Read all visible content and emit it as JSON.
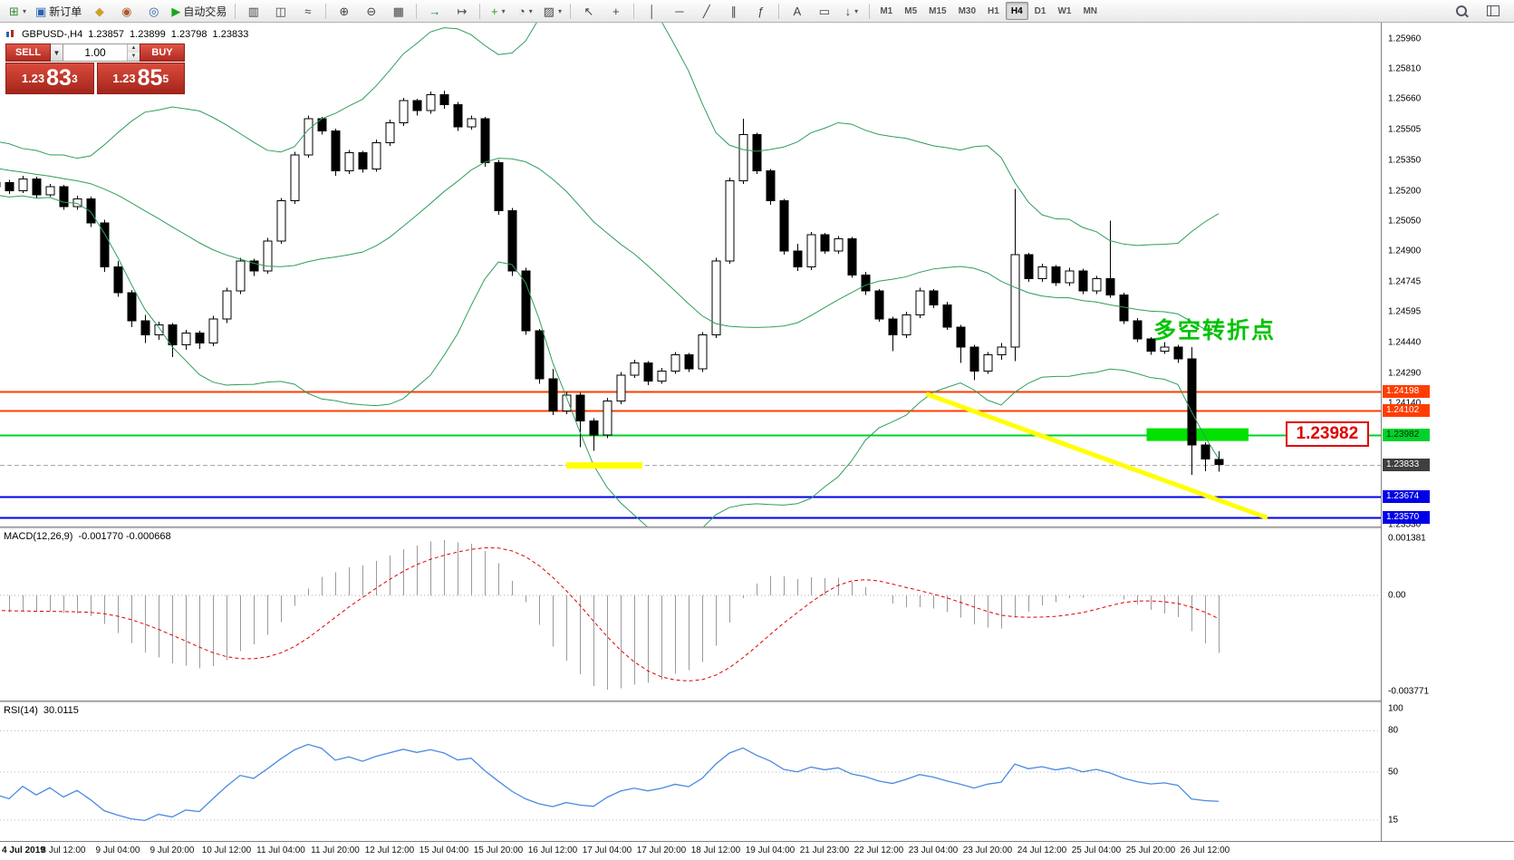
{
  "toolbar": {
    "buttons": [
      {
        "name": "new-chart-button",
        "glyph": "⊞",
        "color": "#3c8c3c",
        "dropdown": true
      },
      {
        "name": "new-order-button",
        "glyph": "▣",
        "color": "#2a62b0",
        "label": "新订单"
      },
      {
        "name": "metaeditor-button",
        "glyph": "◆",
        "color": "#c9a227"
      },
      {
        "name": "market-button",
        "glyph": "◉",
        "color": "#b05a2a"
      },
      {
        "name": "community-button",
        "glyph": "◎",
        "color": "#2a62b0"
      },
      {
        "name": "autotrading-button",
        "glyph": "▶",
        "color": "#18a818",
        "label": "自动交易"
      },
      {
        "sep": true
      },
      {
        "name": "bar-chart-button",
        "glyph": "▥",
        "color": "#444444"
      },
      {
        "name": "candlestick-button",
        "glyph": "◫",
        "color": "#444444"
      },
      {
        "name": "line-chart-button",
        "glyph": "≈",
        "color": "#444444"
      },
      {
        "sep": true
      },
      {
        "name": "zoom-in-button",
        "glyph": "⊕",
        "color": "#444444"
      },
      {
        "name": "zoom-out-button",
        "glyph": "⊖",
        "color": "#444444"
      },
      {
        "name": "tick-chart-button",
        "glyph": "▦",
        "color": "#444444"
      },
      {
        "sep": true
      },
      {
        "name": "autoscroll-button",
        "glyph": "→",
        "color": "#2a7a2a"
      },
      {
        "name": "chart-shift-button",
        "glyph": "↦",
        "color": "#444444"
      },
      {
        "sep": true
      },
      {
        "name": "indicators-button",
        "glyph": "+",
        "color": "#18a818",
        "dropdown": true
      },
      {
        "name": "periods-button",
        "glyph": "◔",
        "color": "#444444",
        "dropdown": true
      },
      {
        "name": "templates-button",
        "glyph": "▨",
        "color": "#444444",
        "dropdown": true
      },
      {
        "sep": true
      },
      {
        "name": "cursor-button",
        "glyph": "↖",
        "color": "#444444"
      },
      {
        "name": "crosshair-button",
        "glyph": "+",
        "color": "#444444"
      },
      {
        "sep": true
      },
      {
        "name": "vertical-line-button",
        "glyph": "│",
        "color": "#444444"
      },
      {
        "name": "horizontal-line-button",
        "glyph": "─",
        "color": "#444444"
      },
      {
        "name": "trendline-button",
        "glyph": "╱",
        "color": "#444444"
      },
      {
        "name": "channel-button",
        "glyph": "∥",
        "color": "#444444"
      },
      {
        "name": "fibonacci-button",
        "glyph": "ƒ",
        "color": "#444444"
      },
      {
        "sep": true
      },
      {
        "name": "text-button",
        "glyph": "A",
        "color": "#444444"
      },
      {
        "name": "label-button",
        "glyph": "▭",
        "color": "#444444"
      },
      {
        "name": "arrows-button",
        "glyph": "↓",
        "color": "#444444",
        "dropdown": true
      },
      {
        "sep": true
      }
    ],
    "timeframes": [
      {
        "label": "M1"
      },
      {
        "label": "M5"
      },
      {
        "label": "M15"
      },
      {
        "label": "M30"
      },
      {
        "label": "H1"
      },
      {
        "label": "H4",
        "active": true
      },
      {
        "label": "D1"
      },
      {
        "label": "W1"
      },
      {
        "label": "MN"
      }
    ],
    "right_buttons": [
      {
        "name": "search-button",
        "icon": "magnifier"
      },
      {
        "name": "panels-button",
        "icon": "panels"
      }
    ]
  },
  "one_click": {
    "sell_label": "SELL",
    "buy_label": "BUY",
    "lot": "1.00",
    "sell": {
      "big": "1.23",
      "pips": "83",
      "pt": "3"
    },
    "buy": {
      "big": "1.23",
      "pips": "85",
      "pt": "5"
    }
  },
  "chart_data": {
    "type": "candlestick",
    "symbol_period": "GBPUSD-,H4",
    "open": "1.23857",
    "high": "1.23899",
    "low": "1.23798",
    "close": "1.23833",
    "ylim": [
      1.23523,
      1.2604
    ],
    "visible_start": 21,
    "candles": [
      [
        1.2548,
        1.25495,
        1.25435,
        1.2545
      ],
      [
        1.2545,
        1.25465,
        1.25405,
        1.2542
      ],
      [
        1.2542,
        1.25455,
        1.25405,
        1.2544
      ],
      [
        1.2544,
        1.2545,
        1.25375,
        1.2539
      ],
      [
        1.2539,
        1.25425,
        1.25375,
        1.2541
      ],
      [
        1.2541,
        1.2542,
        1.25345,
        1.2536
      ],
      [
        1.2536,
        1.25395,
        1.25345,
        1.2538
      ],
      [
        1.2538,
        1.2539,
        1.25315,
        1.2533
      ],
      [
        1.2533,
        1.25365,
        1.25315,
        1.2535
      ],
      [
        1.2535,
        1.2536,
        1.25285,
        1.253
      ],
      [
        1.253,
        1.25335,
        1.25285,
        1.2532
      ],
      [
        1.2532,
        1.2533,
        1.25265,
        1.2528
      ],
      [
        1.2528,
        1.25315,
        1.25265,
        1.253
      ],
      [
        1.253,
        1.2531,
        1.25245,
        1.2526
      ],
      [
        1.2526,
        1.25295,
        1.25245,
        1.2528
      ],
      [
        1.2528,
        1.2529,
        1.25225,
        1.2524
      ],
      [
        1.2524,
        1.25275,
        1.25225,
        1.2526
      ],
      [
        1.2526,
        1.2527,
        1.25215,
        1.2523
      ],
      [
        1.2523,
        1.25265,
        1.25215,
        1.2525
      ],
      [
        1.2525,
        1.2526,
        1.25205,
        1.2522
      ],
      [
        1.2522,
        1.25255,
        1.25205,
        1.2524
      ],
      [
        1.2524,
        1.25255,
        1.25185,
        1.252
      ],
      [
        1.252,
        1.25275,
        1.2519,
        1.2526
      ],
      [
        1.2526,
        1.2527,
        1.25165,
        1.2518
      ],
      [
        1.2518,
        1.25235,
        1.2517,
        1.2522
      ],
      [
        1.2522,
        1.2523,
        1.25105,
        1.2512
      ],
      [
        1.2512,
        1.25175,
        1.25105,
        1.2516
      ],
      [
        1.2516,
        1.2517,
        1.2502,
        1.2504
      ],
      [
        1.2504,
        1.25055,
        1.24795,
        1.2482
      ],
      [
        1.2482,
        1.2485,
        1.2467,
        1.2469
      ],
      [
        1.2469,
        1.24705,
        1.2452,
        1.2455
      ],
      [
        1.2455,
        1.2458,
        1.2444,
        1.2448
      ],
      [
        1.2448,
        1.24545,
        1.24455,
        1.2453
      ],
      [
        1.2453,
        1.2454,
        1.2437,
        1.2443
      ],
      [
        1.2443,
        1.24505,
        1.24405,
        1.2449
      ],
      [
        1.2449,
        1.245,
        1.2441,
        1.2444
      ],
      [
        1.2444,
        1.24575,
        1.24425,
        1.2456
      ],
      [
        1.2456,
        1.24715,
        1.2454,
        1.247
      ],
      [
        1.247,
        1.24865,
        1.24685,
        1.2485
      ],
      [
        1.2485,
        1.2486,
        1.24775,
        1.248
      ],
      [
        1.248,
        1.24965,
        1.24785,
        1.2495
      ],
      [
        1.2495,
        1.25165,
        1.24935,
        1.2515
      ],
      [
        1.2515,
        1.25395,
        1.25135,
        1.2538
      ],
      [
        1.2538,
        1.25575,
        1.25365,
        1.2556
      ],
      [
        1.2556,
        1.2557,
        1.2548,
        1.255
      ],
      [
        1.255,
        1.2551,
        1.25275,
        1.253
      ],
      [
        1.253,
        1.25405,
        1.25285,
        1.2539
      ],
      [
        1.2539,
        1.254,
        1.2529,
        1.2531
      ],
      [
        1.2531,
        1.25455,
        1.25295,
        1.2544
      ],
      [
        1.2544,
        1.25555,
        1.25425,
        1.2554
      ],
      [
        1.2554,
        1.25665,
        1.25525,
        1.2565
      ],
      [
        1.2565,
        1.2566,
        1.25575,
        1.256
      ],
      [
        1.256,
        1.25695,
        1.25585,
        1.2568
      ],
      [
        1.2568,
        1.257,
        1.2561,
        1.2563
      ],
      [
        1.2563,
        1.25645,
        1.255,
        1.2552
      ],
      [
        1.2552,
        1.25575,
        1.25505,
        1.2556
      ],
      [
        1.2556,
        1.2557,
        1.2532,
        1.2534
      ],
      [
        1.2534,
        1.25355,
        1.2508,
        1.251
      ],
      [
        1.251,
        1.25115,
        1.24775,
        1.248
      ],
      [
        1.248,
        1.24815,
        1.2448,
        1.245
      ],
      [
        1.245,
        1.2451,
        1.24235,
        1.2426
      ],
      [
        1.2426,
        1.2431,
        1.2408,
        1.241
      ],
      [
        1.241,
        1.24195,
        1.24085,
        1.2418
      ],
      [
        1.2418,
        1.2419,
        1.2392,
        1.2405
      ],
      [
        1.2405,
        1.24065,
        1.239,
        1.2398
      ],
      [
        1.2398,
        1.24165,
        1.23965,
        1.2415
      ],
      [
        1.2415,
        1.24295,
        1.24135,
        1.2428
      ],
      [
        1.2428,
        1.24355,
        1.24265,
        1.2434
      ],
      [
        1.2434,
        1.2435,
        1.2423,
        1.2425
      ],
      [
        1.2425,
        1.24315,
        1.24235,
        1.243
      ],
      [
        1.243,
        1.24395,
        1.24285,
        1.2438
      ],
      [
        1.2438,
        1.2439,
        1.24295,
        1.2431
      ],
      [
        1.2431,
        1.24495,
        1.24295,
        1.2448
      ],
      [
        1.2448,
        1.24865,
        1.24465,
        1.2485
      ],
      [
        1.2485,
        1.25265,
        1.24835,
        1.2525
      ],
      [
        1.2525,
        1.2556,
        1.25235,
        1.2548
      ],
      [
        1.2548,
        1.2549,
        1.25285,
        1.253
      ],
      [
        1.253,
        1.2531,
        1.2513,
        1.2515
      ],
      [
        1.2515,
        1.2516,
        1.2488,
        1.249
      ],
      [
        1.249,
        1.24935,
        1.248,
        1.2482
      ],
      [
        1.2482,
        1.24995,
        1.24805,
        1.2498
      ],
      [
        1.2498,
        1.2499,
        1.24885,
        1.249
      ],
      [
        1.249,
        1.24975,
        1.24885,
        1.2496
      ],
      [
        1.2496,
        1.2497,
        1.24765,
        1.2478
      ],
      [
        1.2478,
        1.24795,
        1.2468,
        1.247
      ],
      [
        1.247,
        1.2471,
        1.24545,
        1.2456
      ],
      [
        1.2456,
        1.2457,
        1.244,
        1.2448
      ],
      [
        1.2448,
        1.24595,
        1.24465,
        1.2458
      ],
      [
        1.2458,
        1.24715,
        1.24565,
        1.247
      ],
      [
        1.247,
        1.2471,
        1.24615,
        1.2463
      ],
      [
        1.2463,
        1.24645,
        1.24505,
        1.2452
      ],
      [
        1.2452,
        1.2453,
        1.2434,
        1.2442
      ],
      [
        1.2442,
        1.2443,
        1.24255,
        1.243
      ],
      [
        1.243,
        1.24395,
        1.24285,
        1.2438
      ],
      [
        1.2438,
        1.2444,
        1.24355,
        1.2442
      ],
      [
        1.2442,
        1.2521,
        1.2435,
        1.2488
      ],
      [
        1.2488,
        1.2489,
        1.24745,
        1.2476
      ],
      [
        1.2476,
        1.24835,
        1.24745,
        1.2482
      ],
      [
        1.2482,
        1.2483,
        1.24725,
        1.2474
      ],
      [
        1.2474,
        1.24815,
        1.24725,
        1.248
      ],
      [
        1.248,
        1.2481,
        1.24685,
        1.247
      ],
      [
        1.247,
        1.24775,
        1.24685,
        1.2476
      ],
      [
        1.2476,
        1.2505,
        1.24665,
        1.2468
      ],
      [
        1.2468,
        1.2469,
        1.24535,
        1.2455
      ],
      [
        1.2455,
        1.24565,
        1.24445,
        1.2446
      ],
      [
        1.2446,
        1.2447,
        1.2438,
        1.244
      ],
      [
        1.244,
        1.24445,
        1.24385,
        1.2442
      ],
      [
        1.2442,
        1.2443,
        1.2434,
        1.2436
      ],
      [
        1.2436,
        1.2442,
        1.2378,
        1.2393
      ],
      [
        1.2393,
        1.23945,
        1.238,
        1.2386
      ],
      [
        1.23857,
        1.23899,
        1.23798,
        1.23833
      ]
    ],
    "x_labels": [
      "4 Jul 2019",
      "8 Jul 12:00",
      "9 Jul 04:00",
      "9 Jul 20:00",
      "10 Jul 12:00",
      "11 Jul 04:00",
      "11 Jul 20:00",
      "12 Jul 12:00",
      "15 Jul 04:00",
      "15 Jul 20:00",
      "16 Jul 12:00",
      "17 Jul 04:00",
      "17 Jul 20:00",
      "18 Jul 12:00",
      "19 Jul 04:00",
      "21 Jul 23:00",
      "22 Jul 12:00",
      "23 Jul 04:00",
      "23 Jul 20:00",
      "24 Jul 12:00",
      "25 Jul 04:00",
      "25 Jul 20:00",
      "26 Jul 12:00"
    ],
    "price_scale_labels": [
      "1.25960",
      "1.25810",
      "1.25660",
      "1.25505",
      "1.25350",
      "1.25200",
      "1.25050",
      "1.24900",
      "1.24745",
      "1.24595",
      "1.24440",
      "1.24290",
      "1.24140",
      "1.23530"
    ],
    "levels": [
      {
        "price": 1.24198,
        "label": "1.24198",
        "color": "#ff3d00",
        "width": 2
      },
      {
        "price": 1.24102,
        "label": "1.24102",
        "color": "#ff3d00",
        "width": 2
      },
      {
        "price": 1.23982,
        "label": "1.23982",
        "color": "#00d22b",
        "width": 2,
        "text_color": "#002b00"
      },
      {
        "price": 1.23833,
        "label": "1.23833",
        "color": "#3f3f3f",
        "width": 1,
        "style": "dashed",
        "line_color": "#a8a8a8"
      },
      {
        "price": 1.23674,
        "label": "1.23674",
        "color": "#0000e6",
        "width": 2
      },
      {
        "price": 1.2357,
        "label": "1.23570",
        "color": "#0000e6",
        "width": 2
      }
    ],
    "indicators": {
      "bollinger": {
        "period": 20,
        "deviation": 2,
        "color": "#2E9E5B"
      },
      "macd": {
        "label": "MACD(12,26,9)",
        "values": "-0.001770 -0.000668",
        "scale": [
          "0.001381",
          "0.00",
          "-0.003771"
        ],
        "bar_color": "#9a9a9a",
        "signal_color": "#e00000"
      },
      "rsi": {
        "label": "RSI(14)",
        "value": "30.0115",
        "color": "#4b8ae0",
        "levels": [
          80,
          50,
          15
        ],
        "scale": [
          "100",
          "80",
          "50",
          "15"
        ]
      }
    },
    "annotations": {
      "note": {
        "text": "多空转折点",
        "i": 84.2,
        "price": 1.2452,
        "color": "#00c300"
      },
      "callout": {
        "text": "1.23982",
        "i": 93.9,
        "price": 1.23982,
        "color": "#e00000"
      }
    },
    "objects": [
      {
        "type": "zone",
        "i1": 83.7,
        "i2": 91.2,
        "price": 1.23982,
        "thickness": 14,
        "color": "#00e100"
      },
      {
        "type": "hsegment",
        "i1": 41.0,
        "i2": 46.6,
        "price": 1.23828,
        "thickness": 7,
        "color": "#ffff00"
      },
      {
        "type": "trendline",
        "i1": 67.5,
        "p1": 1.24185,
        "i2": 92.6,
        "p2": 1.23566,
        "width": 5,
        "color": "#ffff00"
      }
    ]
  }
}
